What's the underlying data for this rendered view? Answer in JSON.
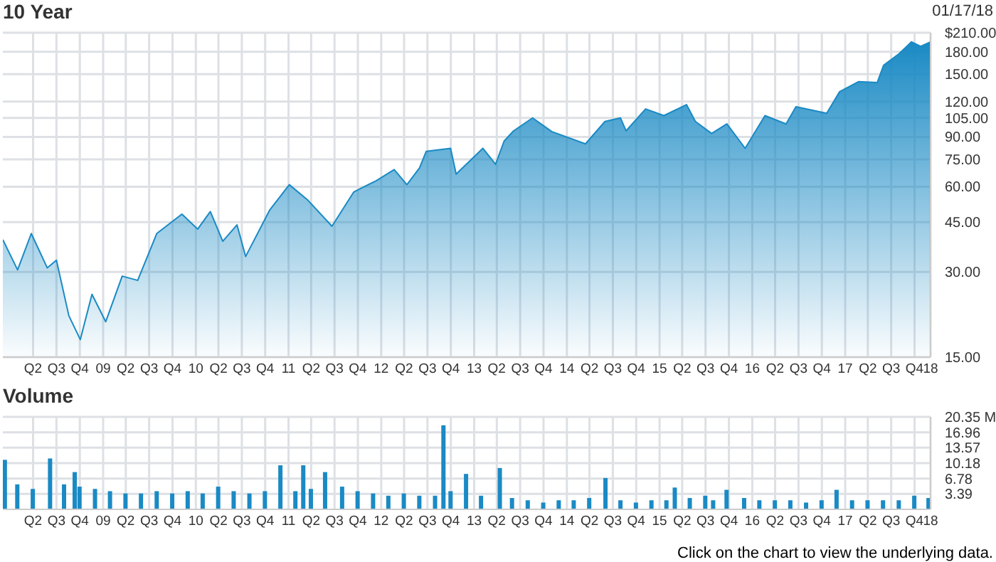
{
  "chart_data": [
    {
      "type": "area",
      "title": "10 Year",
      "annotations": [
        "01/17/18"
      ],
      "color": "#1a8ac4",
      "log": true,
      "grid": true,
      "x": [
        "2008-01-17",
        "2008-03-15",
        "2008-05-08",
        "2008-07-10",
        "2008-08-15",
        "2008-10-03",
        "2008-11-17",
        "2009-01-02",
        "2009-02-25",
        "2009-05-01",
        "2009-07-01",
        "2009-09-14",
        "2009-12-22",
        "2010-02-22",
        "2010-04-13",
        "2010-06-01",
        "2010-07-27",
        "2010-08-30",
        "2010-12-02",
        "2011-02-18",
        "2011-04-30",
        "2011-08-05",
        "2011-10-30",
        "2012-01-26",
        "2012-04-06",
        "2012-05-26",
        "2012-07-15",
        "2012-08-10",
        "2012-11-14",
        "2012-12-06",
        "2013-03-21",
        "2013-05-10",
        "2013-06-13",
        "2013-07-20",
        "2013-10-03",
        "2013-12-17",
        "2014-04-29",
        "2014-07-15",
        "2014-09-14",
        "2014-10-06",
        "2014-12-22",
        "2015-03-04",
        "2015-06-01",
        "2015-07-06",
        "2015-09-08",
        "2015-11-07",
        "2016-01-18",
        "2016-04-05",
        "2016-06-27",
        "2016-08-05",
        "2016-12-04",
        "2017-01-24",
        "2017-04-08",
        "2017-06-21",
        "2017-07-16",
        "2017-09-15",
        "2017-11-03",
        "2017-12-09",
        "2018-01-17"
      ],
      "values": [
        39,
        30.5,
        41,
        31,
        33,
        21,
        17.3,
        25,
        20,
        29,
        28,
        41,
        48,
        42.5,
        49,
        38.5,
        44,
        34,
        49.5,
        61,
        54,
        43.5,
        57.5,
        63,
        69,
        61,
        70,
        80,
        82,
        66.5,
        82,
        72,
        87,
        94.5,
        105,
        94,
        85,
        102,
        105,
        94.5,
        113,
        107,
        117,
        102,
        92.5,
        100,
        82,
        107,
        100,
        115,
        109,
        130,
        141,
        140,
        161,
        177,
        195,
        188,
        195
      ],
      "xlim": [
        "2008-01-17",
        "2018-01-17"
      ],
      "ylim": [
        15,
        210
      ],
      "yticks": [
        {
          "value": 15,
          "label": "15.00"
        },
        {
          "value": 30,
          "label": "30.00"
        },
        {
          "value": 45,
          "label": "45.00"
        },
        {
          "value": 60,
          "label": "60.00"
        },
        {
          "value": 75,
          "label": "75.00"
        },
        {
          "value": 90,
          "label": "90.00"
        },
        {
          "value": 105,
          "label": "105.00"
        },
        {
          "value": 120,
          "label": "120.00"
        },
        {
          "value": 150,
          "label": "150.00"
        },
        {
          "value": 180,
          "label": "180.00"
        },
        {
          "value": 210,
          "label": "$210.00"
        }
      ],
      "xticks": [
        {
          "value": "2008-05-15",
          "label": "Q2"
        },
        {
          "value": "2008-08-15",
          "label": "Q3"
        },
        {
          "value": "2008-11-15",
          "label": "Q4"
        },
        {
          "value": "2009-02-15",
          "label": "09"
        },
        {
          "value": "2009-05-15",
          "label": "Q2"
        },
        {
          "value": "2009-08-15",
          "label": "Q3"
        },
        {
          "value": "2009-11-15",
          "label": "Q4"
        },
        {
          "value": "2010-02-15",
          "label": "10"
        },
        {
          "value": "2010-05-15",
          "label": "Q2"
        },
        {
          "value": "2010-08-15",
          "label": "Q3"
        },
        {
          "value": "2010-11-15",
          "label": "Q4"
        },
        {
          "value": "2011-02-15",
          "label": "11"
        },
        {
          "value": "2011-05-15",
          "label": "Q2"
        },
        {
          "value": "2011-08-15",
          "label": "Q3"
        },
        {
          "value": "2011-11-15",
          "label": "Q4"
        },
        {
          "value": "2012-02-15",
          "label": "12"
        },
        {
          "value": "2012-05-15",
          "label": "Q2"
        },
        {
          "value": "2012-08-15",
          "label": "Q3"
        },
        {
          "value": "2012-11-15",
          "label": "Q4"
        },
        {
          "value": "2013-02-15",
          "label": "13"
        },
        {
          "value": "2013-05-15",
          "label": "Q2"
        },
        {
          "value": "2013-08-15",
          "label": "Q3"
        },
        {
          "value": "2013-11-15",
          "label": "Q4"
        },
        {
          "value": "2014-02-15",
          "label": "14"
        },
        {
          "value": "2014-05-15",
          "label": "Q2"
        },
        {
          "value": "2014-08-15",
          "label": "Q3"
        },
        {
          "value": "2014-11-15",
          "label": "Q4"
        },
        {
          "value": "2015-02-15",
          "label": "15"
        },
        {
          "value": "2015-05-15",
          "label": "Q2"
        },
        {
          "value": "2015-08-15",
          "label": "Q3"
        },
        {
          "value": "2015-11-15",
          "label": "Q4"
        },
        {
          "value": "2016-02-15",
          "label": "16"
        },
        {
          "value": "2016-05-15",
          "label": "Q2"
        },
        {
          "value": "2016-08-15",
          "label": "Q3"
        },
        {
          "value": "2016-11-15",
          "label": "Q4"
        },
        {
          "value": "2017-02-15",
          "label": "17"
        },
        {
          "value": "2017-05-15",
          "label": "Q2"
        },
        {
          "value": "2017-08-15",
          "label": "Q3"
        },
        {
          "value": "2017-11-15",
          "label": "Q4"
        },
        {
          "value": "2018-01-17",
          "label": "18"
        }
      ]
    },
    {
      "type": "bar",
      "title": "Volume",
      "annotations": [
        "Click on the chart to view the underlying data."
      ],
      "color": "#1a8ac4",
      "grid": true,
      "x": [
        "2008-01-26",
        "2008-03-15",
        "2008-05-15",
        "2008-07-22",
        "2008-09-15",
        "2008-10-27",
        "2008-11-15",
        "2009-01-15",
        "2009-03-15",
        "2009-05-15",
        "2009-07-15",
        "2009-09-15",
        "2009-11-15",
        "2010-01-15",
        "2010-03-15",
        "2010-05-15",
        "2010-07-15",
        "2010-09-15",
        "2010-11-15",
        "2011-01-15",
        "2011-03-15",
        "2011-04-15",
        "2011-05-15",
        "2011-07-10",
        "2011-09-15",
        "2011-11-15",
        "2012-01-15",
        "2012-03-15",
        "2012-05-15",
        "2012-07-15",
        "2012-09-15",
        "2012-10-18",
        "2012-11-15",
        "2013-01-15",
        "2013-03-15",
        "2013-05-28",
        "2013-07-15",
        "2013-09-15",
        "2013-11-15",
        "2014-01-15",
        "2014-03-15",
        "2014-05-15",
        "2014-07-18",
        "2014-09-15",
        "2014-11-15",
        "2015-01-15",
        "2015-03-15",
        "2015-04-17",
        "2015-06-15",
        "2015-08-15",
        "2015-09-15",
        "2015-11-07",
        "2016-01-15",
        "2016-03-15",
        "2016-05-15",
        "2016-07-15",
        "2016-09-15",
        "2016-11-15",
        "2017-01-13",
        "2017-03-15",
        "2017-05-15",
        "2017-07-15",
        "2017-09-15",
        "2017-11-15",
        "2018-01-10"
      ],
      "values": [
        10.9,
        5.5,
        4.5,
        11.2,
        5.5,
        8.2,
        5,
        4.5,
        4,
        3.5,
        3.5,
        4,
        3.5,
        4,
        3.5,
        5,
        4,
        3.5,
        4,
        9.7,
        4,
        9.7,
        4.5,
        8.2,
        5,
        4,
        3.5,
        3,
        3.5,
        3,
        3,
        18.5,
        4,
        7.8,
        3,
        9.1,
        2.5,
        2,
        1.5,
        2,
        2,
        2.5,
        6.9,
        2,
        1.5,
        2,
        2,
        4.8,
        2.5,
        3,
        2,
        4.3,
        2.5,
        2,
        2,
        2,
        1.5,
        2,
        4.3,
        2,
        2,
        2,
        2,
        3,
        2.5
      ],
      "xlim": [
        "2008-01-17",
        "2018-01-17"
      ],
      "ylim": [
        0,
        20.35
      ],
      "yticks": [
        3.39,
        6.78,
        10.18,
        13.57,
        16.96,
        {
          "value": 20.35,
          "label": "20.35 M"
        }
      ],
      "xticks": [
        {
          "value": "2008-05-15",
          "label": "Q2"
        },
        {
          "value": "2008-08-15",
          "label": "Q3"
        },
        {
          "value": "2008-11-15",
          "label": "Q4"
        },
        {
          "value": "2009-02-15",
          "label": "09"
        },
        {
          "value": "2009-05-15",
          "label": "Q2"
        },
        {
          "value": "2009-08-15",
          "label": "Q3"
        },
        {
          "value": "2009-11-15",
          "label": "Q4"
        },
        {
          "value": "2010-02-15",
          "label": "10"
        },
        {
          "value": "2010-05-15",
          "label": "Q2"
        },
        {
          "value": "2010-08-15",
          "label": "Q3"
        },
        {
          "value": "2010-11-15",
          "label": "Q4"
        },
        {
          "value": "2011-02-15",
          "label": "11"
        },
        {
          "value": "2011-05-15",
          "label": "Q2"
        },
        {
          "value": "2011-08-15",
          "label": "Q3"
        },
        {
          "value": "2011-11-15",
          "label": "Q4"
        },
        {
          "value": "2012-02-15",
          "label": "12"
        },
        {
          "value": "2012-05-15",
          "label": "Q2"
        },
        {
          "value": "2012-08-15",
          "label": "Q3"
        },
        {
          "value": "2012-11-15",
          "label": "Q4"
        },
        {
          "value": "2013-02-15",
          "label": "13"
        },
        {
          "value": "2013-05-15",
          "label": "Q2"
        },
        {
          "value": "2013-08-15",
          "label": "Q3"
        },
        {
          "value": "2013-11-15",
          "label": "Q4"
        },
        {
          "value": "2014-02-15",
          "label": "14"
        },
        {
          "value": "2014-05-15",
          "label": "Q2"
        },
        {
          "value": "2014-08-15",
          "label": "Q3"
        },
        {
          "value": "2014-11-15",
          "label": "Q4"
        },
        {
          "value": "2015-02-15",
          "label": "15"
        },
        {
          "value": "2015-05-15",
          "label": "Q2"
        },
        {
          "value": "2015-08-15",
          "label": "Q3"
        },
        {
          "value": "2015-11-15",
          "label": "Q4"
        },
        {
          "value": "2016-02-15",
          "label": "16"
        },
        {
          "value": "2016-05-15",
          "label": "Q2"
        },
        {
          "value": "2016-08-15",
          "label": "Q3"
        },
        {
          "value": "2016-11-15",
          "label": "Q4"
        },
        {
          "value": "2017-02-15",
          "label": "17"
        },
        {
          "value": "2017-05-15",
          "label": "Q2"
        },
        {
          "value": "2017-08-15",
          "label": "Q3"
        },
        {
          "value": "2017-11-15",
          "label": "Q4"
        },
        {
          "value": "2018-01-17",
          "label": "18"
        }
      ]
    }
  ]
}
